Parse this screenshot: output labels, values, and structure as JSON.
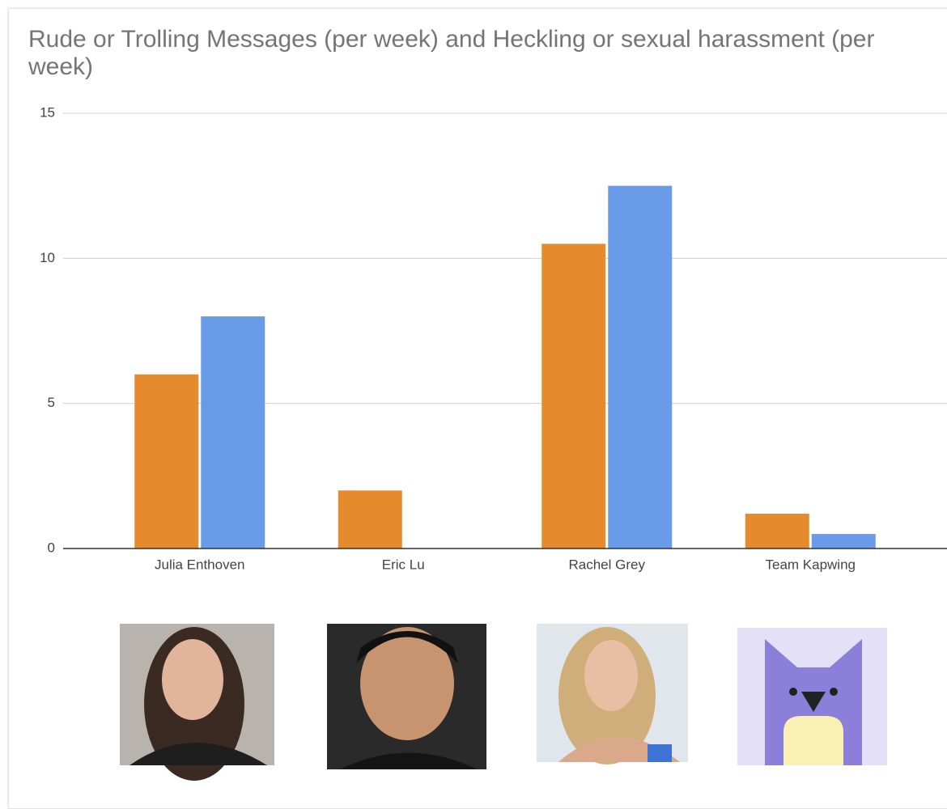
{
  "chart_data": {
    "type": "bar",
    "title": "Rude or Trolling Messages (per week) and Heckling or sexual harassment (per week)",
    "categories": [
      "Julia Enthoven",
      "Eric Lu",
      "Rachel Grey",
      "Team Kapwing"
    ],
    "series": [
      {
        "color": "#e68a2e",
        "values": [
          6,
          2,
          10.5,
          1.2
        ]
      },
      {
        "color": "#6a9be8",
        "values": [
          8,
          0,
          12.5,
          0.5
        ]
      }
    ],
    "ylim": [
      0,
      15
    ],
    "yticks": [
      0,
      5,
      10,
      15
    ],
    "grid": true
  }
}
